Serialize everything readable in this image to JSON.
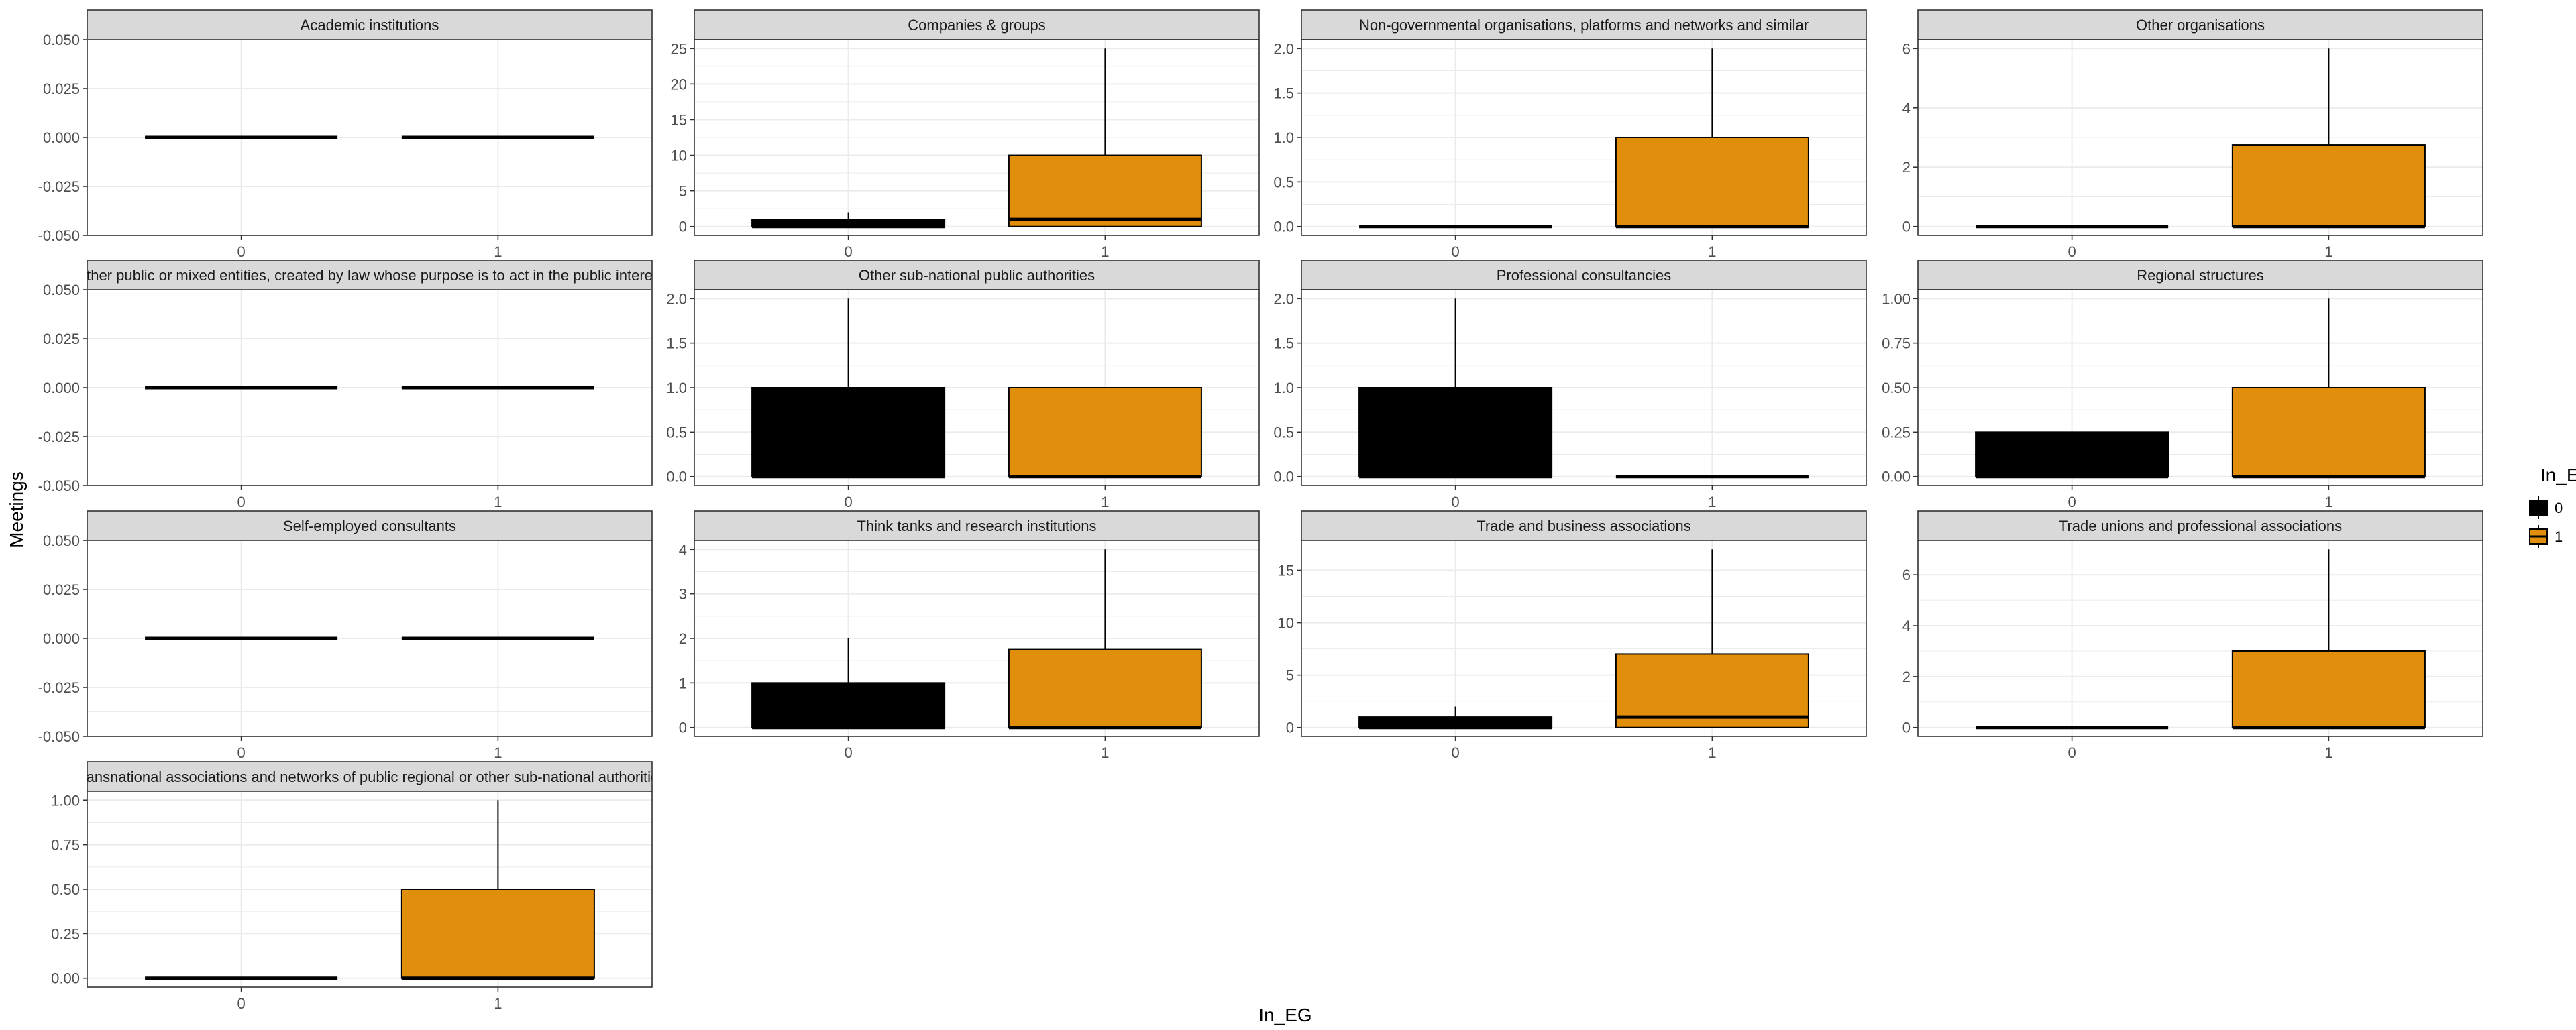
{
  "chart_data": {
    "type": "boxplot",
    "xlabel": "In_EG",
    "ylabel": "Meetings",
    "categories": [
      "0",
      "1"
    ],
    "legend": {
      "title": "In_EG",
      "position": "right",
      "items": [
        {
          "label": "0",
          "color": "#000000"
        },
        {
          "label": "1",
          "color": "#E08E0B"
        }
      ]
    },
    "colors": {
      "0": "#000000",
      "1": "#E08E0B",
      "strip_fill": "#d9d9d9",
      "grid": "#ebebeb",
      "panel_border": "#333333"
    },
    "grid": true,
    "panels": [
      {
        "title": "Academic institutions",
        "ylim": [
          -0.05,
          0.05
        ],
        "yticks": [
          "-0.050",
          "-0.025",
          "0.000",
          "0.025",
          "0.050"
        ],
        "ytick_values": [
          -0.05,
          -0.025,
          0,
          0.025,
          0.05
        ],
        "boxes": [
          {
            "x": "0",
            "q1": 0,
            "median": 0,
            "q3": 0,
            "whisker_low": 0,
            "whisker_high": 0
          },
          {
            "x": "1",
            "q1": 0,
            "median": 0,
            "q3": 0,
            "whisker_low": 0,
            "whisker_high": 0
          }
        ]
      },
      {
        "title": "Companies & groups",
        "ylim": [
          -1.25,
          26.25
        ],
        "yticks": [
          "0",
          "5",
          "10",
          "15",
          "20",
          "25"
        ],
        "ytick_values": [
          0,
          5,
          10,
          15,
          20,
          25
        ],
        "boxes": [
          {
            "x": "0",
            "q1": 0,
            "median": 0,
            "q3": 1,
            "whisker_low": 0,
            "whisker_high": 2
          },
          {
            "x": "1",
            "q1": 0,
            "median": 1,
            "q3": 10,
            "whisker_low": 0,
            "whisker_high": 25
          }
        ]
      },
      {
        "title": "Non-governmental organisations, platforms and networks and similar",
        "ylim": [
          -0.1,
          2.1
        ],
        "yticks": [
          "0.0",
          "0.5",
          "1.0",
          "1.5",
          "2.0"
        ],
        "ytick_values": [
          0,
          0.5,
          1,
          1.5,
          2
        ],
        "boxes": [
          {
            "x": "0",
            "q1": 0,
            "median": 0,
            "q3": 0,
            "whisker_low": 0,
            "whisker_high": 0
          },
          {
            "x": "1",
            "q1": 0,
            "median": 0,
            "q3": 1,
            "whisker_low": 0,
            "whisker_high": 2
          }
        ]
      },
      {
        "title": "Other organisations",
        "ylim": [
          -0.3,
          6.3
        ],
        "yticks": [
          "0",
          "2",
          "4",
          "6"
        ],
        "ytick_values": [
          0,
          2,
          4,
          6
        ],
        "boxes": [
          {
            "x": "0",
            "q1": 0,
            "median": 0,
            "q3": 0,
            "whisker_low": 0,
            "whisker_high": 0
          },
          {
            "x": "1",
            "q1": 0,
            "median": 0,
            "q3": 2.75,
            "whisker_low": 0,
            "whisker_high": 6
          }
        ]
      },
      {
        "title": "Other public or mixed entities, created by law whose purpose is to act in the public interest",
        "ylim": [
          -0.05,
          0.05
        ],
        "yticks": [
          "-0.050",
          "-0.025",
          "0.000",
          "0.025",
          "0.050"
        ],
        "ytick_values": [
          -0.05,
          -0.025,
          0,
          0.025,
          0.05
        ],
        "boxes": [
          {
            "x": "0",
            "q1": 0,
            "median": 0,
            "q3": 0,
            "whisker_low": 0,
            "whisker_high": 0
          },
          {
            "x": "1",
            "q1": 0,
            "median": 0,
            "q3": 0,
            "whisker_low": 0,
            "whisker_high": 0
          }
        ]
      },
      {
        "title": "Other sub-national public authorities",
        "ylim": [
          -0.1,
          2.1
        ],
        "yticks": [
          "0.0",
          "0.5",
          "1.0",
          "1.5",
          "2.0"
        ],
        "ytick_values": [
          0,
          0.5,
          1,
          1.5,
          2
        ],
        "boxes": [
          {
            "x": "0",
            "q1": 0,
            "median": 0,
            "q3": 1,
            "whisker_low": 0,
            "whisker_high": 2
          },
          {
            "x": "1",
            "q1": 0,
            "median": 0,
            "q3": 1,
            "whisker_low": 0,
            "whisker_high": 1
          }
        ]
      },
      {
        "title": "Professional consultancies",
        "ylim": [
          -0.1,
          2.1
        ],
        "yticks": [
          "0.0",
          "0.5",
          "1.0",
          "1.5",
          "2.0"
        ],
        "ytick_values": [
          0,
          0.5,
          1,
          1.5,
          2
        ],
        "boxes": [
          {
            "x": "0",
            "q1": 0,
            "median": 0,
            "q3": 1,
            "whisker_low": 0,
            "whisker_high": 2
          },
          {
            "x": "1",
            "q1": 0,
            "median": 0,
            "q3": 0,
            "whisker_low": 0,
            "whisker_high": 0
          }
        ]
      },
      {
        "title": "Regional structures",
        "ylim": [
          -0.05,
          1.05
        ],
        "yticks": [
          "0.00",
          "0.25",
          "0.50",
          "0.75",
          "1.00"
        ],
        "ytick_values": [
          0,
          0.25,
          0.5,
          0.75,
          1
        ],
        "boxes": [
          {
            "x": "0",
            "q1": 0,
            "median": 0,
            "q3": 0.25,
            "whisker_low": 0,
            "whisker_high": 0.25
          },
          {
            "x": "1",
            "q1": 0,
            "median": 0,
            "q3": 0.5,
            "whisker_low": 0,
            "whisker_high": 1
          }
        ]
      },
      {
        "title": "Self-employed consultants",
        "ylim": [
          -0.05,
          0.05
        ],
        "yticks": [
          "-0.050",
          "-0.025",
          "0.000",
          "0.025",
          "0.050"
        ],
        "ytick_values": [
          -0.05,
          -0.025,
          0,
          0.025,
          0.05
        ],
        "boxes": [
          {
            "x": "0",
            "q1": 0,
            "median": 0,
            "q3": 0,
            "whisker_low": 0,
            "whisker_high": 0
          },
          {
            "x": "1",
            "q1": 0,
            "median": 0,
            "q3": 0,
            "whisker_low": 0,
            "whisker_high": 0
          }
        ]
      },
      {
        "title": "Think tanks and research institutions",
        "ylim": [
          -0.2,
          4.2
        ],
        "yticks": [
          "0",
          "1",
          "2",
          "3",
          "4"
        ],
        "ytick_values": [
          0,
          1,
          2,
          3,
          4
        ],
        "boxes": [
          {
            "x": "0",
            "q1": 0,
            "median": 0,
            "q3": 1,
            "whisker_low": 0,
            "whisker_high": 2
          },
          {
            "x": "1",
            "q1": 0,
            "median": 0,
            "q3": 1.75,
            "whisker_low": 0,
            "whisker_high": 4
          }
        ]
      },
      {
        "title": "Trade and business associations",
        "ylim": [
          -0.85,
          17.85
        ],
        "yticks": [
          "0",
          "5",
          "10",
          "15"
        ],
        "ytick_values": [
          0,
          5,
          10,
          15
        ],
        "boxes": [
          {
            "x": "0",
            "q1": 0,
            "median": 0,
            "q3": 1,
            "whisker_low": 0,
            "whisker_high": 2
          },
          {
            "x": "1",
            "q1": 0,
            "median": 1,
            "q3": 7,
            "whisker_low": 0,
            "whisker_high": 17
          }
        ]
      },
      {
        "title": "Trade unions and professional associations",
        "ylim": [
          -0.35,
          7.35
        ],
        "yticks": [
          "0",
          "2",
          "4",
          "6"
        ],
        "ytick_values": [
          0,
          2,
          4,
          6
        ],
        "boxes": [
          {
            "x": "0",
            "q1": 0,
            "median": 0,
            "q3": 0,
            "whisker_low": 0,
            "whisker_high": 0
          },
          {
            "x": "1",
            "q1": 0,
            "median": 0,
            "q3": 3,
            "whisker_low": 0,
            "whisker_high": 7
          }
        ]
      },
      {
        "title": "Transnational associations and networks of public regional or other sub-national authorities",
        "ylim": [
          -0.05,
          1.05
        ],
        "yticks": [
          "0.00",
          "0.25",
          "0.50",
          "0.75",
          "1.00"
        ],
        "ytick_values": [
          0,
          0.25,
          0.5,
          0.75,
          1
        ],
        "boxes": [
          {
            "x": "0",
            "q1": 0,
            "median": 0,
            "q3": 0,
            "whisker_low": 0,
            "whisker_high": 0
          },
          {
            "x": "1",
            "q1": 0,
            "median": 0,
            "q3": 0.5,
            "whisker_low": 0,
            "whisker_high": 1
          }
        ]
      }
    ]
  }
}
